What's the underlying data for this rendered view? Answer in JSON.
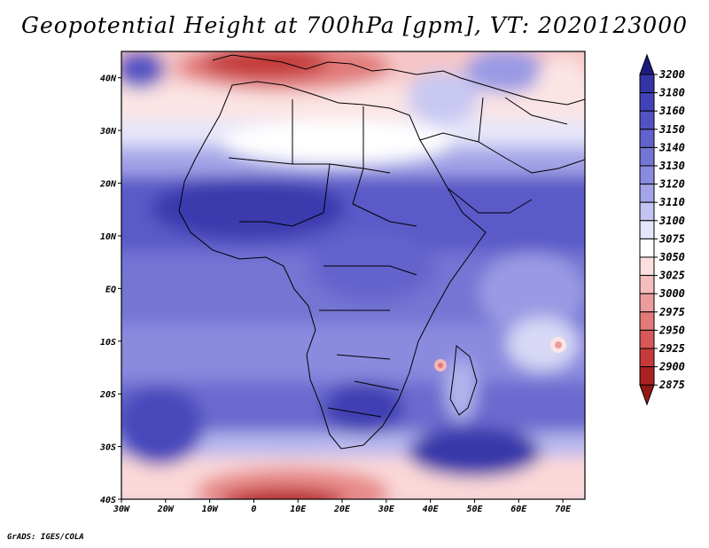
{
  "title": "Geopotential Height at 700hPa [gpm], VT: 2020123000",
  "credit": "GrADS: IGES/COLA",
  "map": {
    "lon_labels": [
      "30W",
      "20W",
      "10W",
      "0",
      "10E",
      "20E",
      "30E",
      "40E",
      "50E",
      "60E",
      "70E"
    ],
    "lat_labels": [
      "40N",
      "30N",
      "20N",
      "10N",
      "EQ",
      "10S",
      "20S",
      "30S",
      "40S"
    ],
    "lon_range": [
      -30,
      75
    ],
    "lat_range": [
      -40,
      45
    ]
  },
  "colorbar": {
    "levels": [
      "3200",
      "3180",
      "3160",
      "3150",
      "3140",
      "3130",
      "3120",
      "3110",
      "3100",
      "3075",
      "3050",
      "3025",
      "3000",
      "2975",
      "2950",
      "2925",
      "2900",
      "2875"
    ],
    "colors": [
      "#27278f",
      "#3434a6",
      "#4242b8",
      "#5252c4",
      "#6262cc",
      "#7575d6",
      "#8a8adf",
      "#a4a4e8",
      "#c4c4f2",
      "#e4e4fa",
      "#ffffff",
      "#fbdede",
      "#f4bebe",
      "#ec9c9c",
      "#e27a7a",
      "#d65858",
      "#c53a3a",
      "#a82222"
    ],
    "top_arrow_color": "#1c1c80",
    "bottom_arrow_color": "#951818"
  },
  "field_colors": {
    "high": "#4242b8",
    "mid": "#7575d6",
    "neutral": "#ffffff",
    "low": "#e27a7a",
    "lowest": "#a82222"
  }
}
